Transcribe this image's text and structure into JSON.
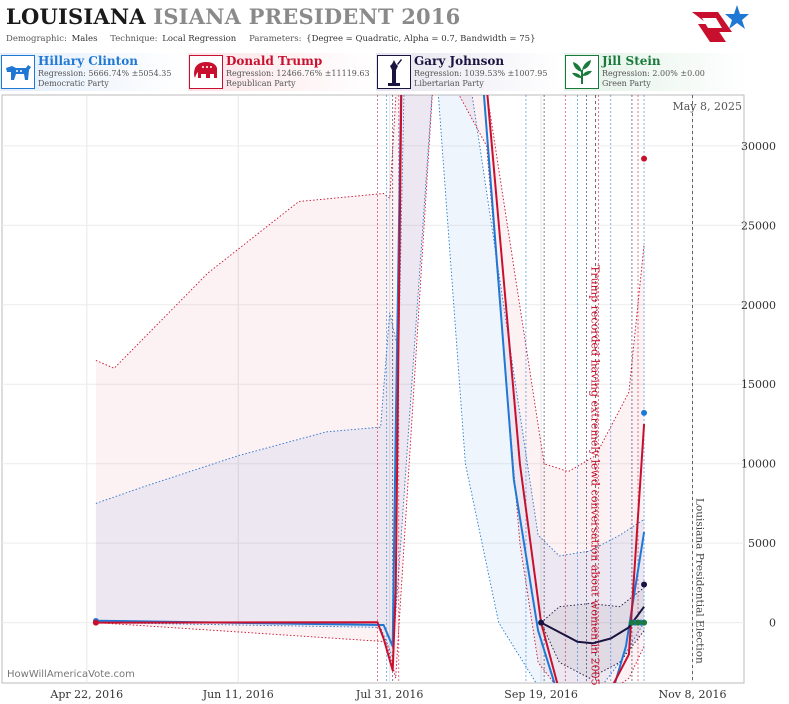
{
  "title": {
    "main": "LOUISIANA",
    "sub": "ISIANA PRESIDENT 2016"
  },
  "meta": {
    "demographic_label": "Demographic:",
    "demographic": "Males",
    "technique_label": "Technique:",
    "technique": "Local Regression",
    "parameters_label": "Parameters:",
    "parameters": "{Degree = Quadratic, Alpha = 0.7, Bandwidth = 75}"
  },
  "candidates": [
    {
      "name": "Hillary Clinton",
      "regression": "Regression: 5666.74% ±5054.35",
      "party": "Democratic Party",
      "color": "#1f78d4",
      "icon": "donkey-icon"
    },
    {
      "name": "Donald Trump",
      "regression": "Regression: 12466.76% ±11119.63",
      "party": "Republican Party",
      "color": "#c8102e",
      "icon": "elephant-icon"
    },
    {
      "name": "Gary Johnson",
      "regression": "Regression: 1039.53% ±1007.95",
      "party": "Libertarian Party",
      "color": "#1b1340",
      "icon": "liberty-icon"
    },
    {
      "name": "Jill Stein",
      "regression": "Regression: 2.00% ±0.00",
      "party": "Green Party",
      "color": "#1a7a3c",
      "icon": "leaf-icon"
    }
  ],
  "date_label": "May 8, 2025",
  "watermark": "HowWillAmericaVote.com",
  "chart_data": {
    "type": "line",
    "x_ticks": [
      "Apr 22, 2016",
      "Jun 11, 2016",
      "Jul 31, 2016",
      "Sep 19, 2016",
      "Nov 8, 2016"
    ],
    "y_ticks": [
      0,
      5000,
      10000,
      15000,
      20000,
      25000,
      30000
    ],
    "x_range": [
      "2016-03-25",
      "2016-11-25"
    ],
    "y_range": [
      -3800,
      33200
    ],
    "grid": true,
    "annotations": [
      {
        "date": "2016-10-07",
        "text": "Trump recorded having extremely lewd conversation about women in 2005"
      },
      {
        "date": "2016-11-08",
        "text": "Louisiana Presidential Election"
      }
    ],
    "poll_dates": [
      "2016-07-27",
      "2016-07-30",
      "2016-08-01",
      "2016-08-03",
      "2016-09-14",
      "2016-09-20",
      "2016-09-27",
      "2016-10-01",
      "2016-10-04",
      "2016-10-08",
      "2016-10-12",
      "2016-10-19",
      "2016-10-21",
      "2016-10-23"
    ],
    "series": [
      {
        "name": "Hillary Clinton",
        "color": "#1f78d4",
        "points": [
          [
            "2016-04-25",
            100
          ],
          [
            "2016-10-20",
            0
          ],
          [
            "2016-10-22",
            0
          ],
          [
            "2016-10-23",
            13200
          ]
        ],
        "line": [
          [
            "2016-04-25",
            120
          ],
          [
            "2016-07-29",
            -150
          ],
          [
            "2016-08-01",
            -1500
          ],
          [
            "2016-08-02",
            12000
          ],
          [
            "2016-08-04",
            36000
          ],
          [
            "2016-08-30",
            36000
          ],
          [
            "2016-09-10",
            9000
          ],
          [
            "2016-09-18",
            -500
          ],
          [
            "2016-09-27",
            -6000
          ],
          [
            "2016-10-10",
            -6000
          ],
          [
            "2016-10-17",
            -1500
          ],
          [
            "2016-10-23",
            5700
          ]
        ],
        "band_upper": [
          [
            "2016-04-25",
            7500
          ],
          [
            "2016-05-10",
            8500
          ],
          [
            "2016-06-11",
            10500
          ],
          [
            "2016-07-10",
            12000
          ],
          [
            "2016-07-28",
            12300
          ],
          [
            "2016-07-31",
            19500
          ],
          [
            "2016-08-03",
            17000
          ],
          [
            "2016-08-05",
            36000
          ],
          [
            "2016-08-25",
            36000
          ],
          [
            "2016-09-18",
            5500
          ],
          [
            "2016-09-25",
            4200
          ],
          [
            "2016-10-05",
            4500
          ],
          [
            "2016-10-15",
            5500
          ],
          [
            "2016-10-23",
            6500
          ]
        ],
        "band_lower": [
          [
            "2016-10-23",
            0
          ],
          [
            "2016-10-15",
            -2500
          ],
          [
            "2016-10-05",
            -5000
          ],
          [
            "2016-09-25",
            -5500
          ],
          [
            "2016-09-18",
            -4000
          ],
          [
            "2016-09-05",
            0
          ],
          [
            "2016-08-25",
            10000
          ],
          [
            "2016-08-15",
            36000
          ],
          [
            "2016-08-01",
            -2200
          ],
          [
            "2016-07-28",
            -300
          ],
          [
            "2016-04-25",
            0
          ]
        ]
      },
      {
        "name": "Donald Trump",
        "color": "#c8102e",
        "points": [
          [
            "2016-04-25",
            0
          ],
          [
            "2016-10-23",
            29200
          ]
        ],
        "line": [
          [
            "2016-04-25",
            0
          ],
          [
            "2016-07-27",
            20
          ],
          [
            "2016-07-29",
            -1000
          ],
          [
            "2016-08-01",
            -3000
          ],
          [
            "2016-08-02",
            2000
          ],
          [
            "2016-08-04",
            36000
          ],
          [
            "2016-08-31",
            36000
          ],
          [
            "2016-09-12",
            10000
          ],
          [
            "2016-09-19",
            0
          ],
          [
            "2016-09-26",
            -5000
          ],
          [
            "2016-10-07",
            -6000
          ],
          [
            "2016-10-18",
            -2000
          ],
          [
            "2016-10-23",
            12500
          ]
        ],
        "band_upper": [
          [
            "2016-04-25",
            16500
          ],
          [
            "2016-05-01",
            16000
          ],
          [
            "2016-06-01",
            22000
          ],
          [
            "2016-07-01",
            26500
          ],
          [
            "2016-07-29",
            27000
          ],
          [
            "2016-07-31",
            26700
          ],
          [
            "2016-08-03",
            36000
          ],
          [
            "2016-08-30",
            36000
          ],
          [
            "2016-09-20",
            10000
          ],
          [
            "2016-09-28",
            9500
          ],
          [
            "2016-10-07",
            10500
          ],
          [
            "2016-10-18",
            14500
          ],
          [
            "2016-10-23",
            23800
          ]
        ],
        "band_lower": [
          [
            "2016-10-23",
            -1500
          ],
          [
            "2016-10-18",
            -3500
          ],
          [
            "2016-10-07",
            -5000
          ],
          [
            "2016-09-26",
            -4500
          ],
          [
            "2016-09-18",
            -2500
          ],
          [
            "2016-09-12",
            5000
          ],
          [
            "2016-09-01",
            30000
          ],
          [
            "2016-08-15",
            36000
          ],
          [
            "2016-08-02",
            -3500
          ],
          [
            "2016-07-30",
            -1200
          ],
          [
            "2016-04-25",
            0
          ]
        ]
      },
      {
        "name": "Gary Johnson",
        "color": "#1b1340",
        "points": [
          [
            "2016-09-19",
            0
          ],
          [
            "2016-10-23",
            2400
          ]
        ],
        "line": [
          [
            "2016-09-19",
            0
          ],
          [
            "2016-09-26",
            -700
          ],
          [
            "2016-10-01",
            -1200
          ],
          [
            "2016-10-06",
            -1300
          ],
          [
            "2016-10-12",
            -1000
          ],
          [
            "2016-10-18",
            -300
          ],
          [
            "2016-10-23",
            1000
          ]
        ],
        "band_upper": [
          [
            "2016-09-19",
            0
          ],
          [
            "2016-09-25",
            1000
          ],
          [
            "2016-10-05",
            1200
          ],
          [
            "2016-10-15",
            1000
          ],
          [
            "2016-10-23",
            2200
          ]
        ],
        "band_lower": [
          [
            "2016-10-23",
            -500
          ],
          [
            "2016-10-15",
            -2500
          ],
          [
            "2016-10-05",
            -3500
          ],
          [
            "2016-09-25",
            -2500
          ],
          [
            "2016-09-19",
            0
          ]
        ]
      },
      {
        "name": "Jill Stein",
        "color": "#1a7a3c",
        "points": [
          [
            "2016-10-19",
            0
          ],
          [
            "2016-10-21",
            0
          ],
          [
            "2016-10-23",
            0
          ]
        ],
        "line": [],
        "band_upper": [],
        "band_lower": []
      }
    ]
  }
}
